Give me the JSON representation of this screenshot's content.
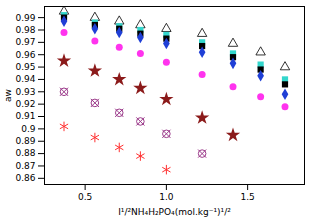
{
  "chart_data": {
    "type": "scatter",
    "x_label": "I¹/²NH₄H₂PO₄(mol.kg⁻¹)¹/²",
    "y_label": "aw",
    "x": [
      0.37,
      0.56,
      0.71,
      0.84,
      1.0,
      1.22,
      1.41,
      1.58,
      1.73
    ],
    "series": [
      {
        "color": "#000000",
        "marker": "triangle-open",
        "values": [
          0.995,
          0.99,
          0.987,
          0.984,
          0.981,
          0.977,
          0.969,
          0.962,
          0.95
        ]
      },
      {
        "color": "#33d6cc",
        "marker": "square",
        "values": [
          0.992,
          0.986,
          0.983,
          0.98,
          0.976,
          0.97,
          0.961,
          0.952,
          0.94
        ]
      },
      {
        "color": "#000000",
        "marker": "square",
        "values": [
          0.99,
          0.984,
          0.981,
          0.977,
          0.973,
          0.967,
          0.958,
          0.948,
          0.936
        ]
      },
      {
        "color": "#1f3fd6",
        "marker": "diamond",
        "values": [
          0.987,
          0.981,
          0.978,
          0.974,
          0.969,
          0.962,
          0.953,
          0.943,
          0.928
        ]
      },
      {
        "color": "#ff33ee",
        "marker": "circle",
        "values": [
          0.978,
          0.971,
          0.966,
          0.961,
          0.954,
          0.944,
          0.934,
          0.926,
          0.918
        ]
      },
      {
        "color": "#8b1a1a",
        "marker": "star",
        "values": [
          0.955,
          0.947,
          0.94,
          0.933,
          0.924,
          0.909,
          0.895,
          null,
          null
        ]
      },
      {
        "color": "#9b3a8a",
        "marker": "circle-cross",
        "values": [
          0.93,
          0.921,
          0.913,
          0.906,
          0.896,
          0.88,
          null,
          null,
          null
        ]
      },
      {
        "color": "#ff3030",
        "marker": "asterisk",
        "values": [
          0.902,
          0.893,
          0.885,
          0.878,
          0.867,
          null,
          null,
          null,
          null
        ]
      }
    ],
    "xlim": [
      0.25,
      1.85
    ],
    "xticks": [
      {
        "value": 0.5,
        "label": "0.5"
      },
      {
        "value": 1.0,
        "label": "1.0"
      },
      {
        "value": 1.5,
        "label": "1.5"
      }
    ],
    "ylim": [
      0.855,
      0.999
    ],
    "yticks": [
      0.86,
      0.87,
      0.88,
      0.89,
      0.9,
      0.91,
      0.92,
      0.93,
      0.94,
      0.95,
      0.96,
      0.97,
      0.98,
      0.99
    ],
    "grid": false
  }
}
